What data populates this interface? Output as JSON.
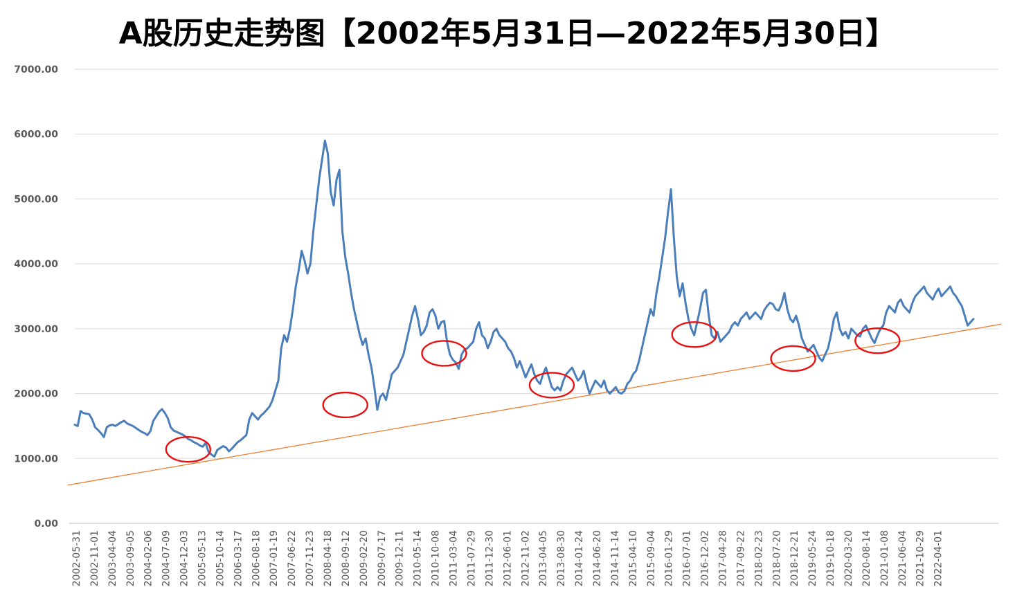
{
  "chart_data": {
    "type": "line",
    "title": "A股历史走势图【2002年5月31日—2022年5月30日】",
    "xlabel": "",
    "ylabel": "",
    "ylim": [
      0,
      7000
    ],
    "yticks": [
      "0.00",
      "1000.00",
      "2000.00",
      "3000.00",
      "4000.00",
      "5000.00",
      "6000.00",
      "7000.00"
    ],
    "ytick_values": [
      0,
      1000,
      2000,
      3000,
      4000,
      5000,
      6000,
      7000
    ],
    "xticks": [
      "2002-05-31",
      "2002-11-01",
      "2003-04-04",
      "2003-09-05",
      "2004-02-06",
      "2004-07-09",
      "2004-12-03",
      "2005-05-13",
      "2005-10-14",
      "2006-03-17",
      "2006-08-18",
      "2007-01-19",
      "2007-06-22",
      "2007-11-23",
      "2008-04-18",
      "2008-09-12",
      "2009-02-20",
      "2009-07-17",
      "2009-12-11",
      "2010-05-14",
      "2010-10-08",
      "2011-03-04",
      "2011-07-29",
      "2011-12-30",
      "2012-06-01",
      "2012-11-02",
      "2013-04-05",
      "2013-08-30",
      "2014-01-24",
      "2014-06-20",
      "2014-11-14",
      "2015-04-10",
      "2015-09-04",
      "2016-01-29",
      "2016-07-01",
      "2016-12-02",
      "2017-04-28",
      "2017-09-22",
      "2018-02-23",
      "2018-07-20",
      "2018-12-21",
      "2019-05-24",
      "2019-10-18",
      "2020-03-20",
      "2020-08-14",
      "2021-01-08",
      "2021-06-04",
      "2021-10-29",
      "2022-04-01"
    ],
    "grid": true,
    "legend": "none",
    "series": [
      {
        "values": [
          1520,
          1500,
          1730,
          1700,
          1690,
          1680,
          1600,
          1480,
          1440,
          1390,
          1330,
          1480,
          1510,
          1520,
          1500,
          1530,
          1560,
          1580,
          1540,
          1520,
          1500,
          1470,
          1440,
          1410,
          1390,
          1360,
          1420,
          1580,
          1650,
          1720,
          1760,
          1700,
          1620,
          1480,
          1430,
          1410,
          1390,
          1370,
          1340,
          1300,
          1280,
          1250,
          1230,
          1200,
          1180,
          1240,
          1100,
          1060,
          1030,
          1130,
          1160,
          1190,
          1170,
          1110,
          1150,
          1200,
          1250,
          1280,
          1320,
          1360,
          1600,
          1700,
          1650,
          1600,
          1660,
          1700,
          1750,
          1800,
          1900,
          2050,
          2200,
          2700,
          2900,
          2800,
          3000,
          3300,
          3650,
          3900,
          4200,
          4050,
          3850,
          4000,
          4500,
          4900,
          5300,
          5600,
          5900,
          5700,
          5100,
          4900,
          5300,
          5450,
          4500,
          4100,
          3850,
          3550,
          3300,
          3100,
          2900,
          2750,
          2850,
          2600,
          2400,
          2100,
          1750,
          1950,
          2000,
          1900,
          2100,
          2300,
          2350,
          2400,
          2500,
          2600,
          2800,
          3000,
          3200,
          3350,
          3150,
          2900,
          2950,
          3050,
          3250,
          3300,
          3200,
          3000,
          3100,
          3120,
          2800,
          2600,
          2520,
          2480,
          2380,
          2600,
          2680,
          2700,
          2750,
          2800,
          3000,
          3100,
          2900,
          2850,
          2700,
          2800,
          2950,
          3000,
          2900,
          2850,
          2800,
          2700,
          2650,
          2550,
          2400,
          2500,
          2380,
          2250,
          2350,
          2450,
          2300,
          2200,
          2150,
          2300,
          2400,
          2250,
          2100,
          2050,
          2100,
          2050,
          2200,
          2300,
          2350,
          2400,
          2300,
          2200,
          2250,
          2350,
          2150,
          2000,
          2100,
          2200,
          2150,
          2100,
          2200,
          2050,
          2000,
          2050,
          2100,
          2020,
          2000,
          2040,
          2150,
          2200,
          2300,
          2350,
          2500,
          2700,
          2900,
          3100,
          3300,
          3200,
          3550,
          3800,
          4100,
          4400,
          4800,
          5150,
          4400,
          3800,
          3500,
          3700,
          3400,
          3150,
          3000,
          2900,
          3100,
          3300,
          3550,
          3600,
          3200,
          2900,
          2850,
          2950,
          2800,
          2850,
          2900,
          2950,
          3050,
          3100,
          3050,
          3150,
          3200,
          3250,
          3150,
          3200,
          3250,
          3200,
          3150,
          3280,
          3350,
          3400,
          3380,
          3300,
          3280,
          3380,
          3550,
          3300,
          3150,
          3100,
          3200,
          3050,
          2850,
          2750,
          2650,
          2700,
          2750,
          2650,
          2550,
          2500,
          2600,
          2700,
          2900,
          3150,
          3250,
          3000,
          2900,
          2950,
          2850,
          3000,
          2950,
          2900,
          2880,
          3000,
          3050,
          2950,
          2850,
          2780,
          2900,
          3000,
          3050,
          3250,
          3350,
          3300,
          3250,
          3400,
          3450,
          3350,
          3300,
          3250,
          3400,
          3500,
          3550,
          3600,
          3650,
          3550,
          3500,
          3450,
          3550,
          3620,
          3500,
          3550,
          3600,
          3650,
          3550,
          3500,
          3420,
          3350,
          3200,
          3050,
          3100,
          3150
        ]
      }
    ],
    "trendline": {
      "start_value": 590,
      "end_value": 3070,
      "color": "#ED7D31"
    },
    "series_color": "#4A7EBB",
    "circle_color": "#E81010",
    "circles": [
      {
        "center_index": 39,
        "center_value": 1140
      },
      {
        "center_index": 93,
        "center_value": 1825
      },
      {
        "center_index": 127,
        "center_value": 2620
      },
      {
        "center_index": 164,
        "center_value": 2130
      },
      {
        "center_index": 213,
        "center_value": 2910
      },
      {
        "center_index": 247,
        "center_value": 2540
      },
      {
        "center_index": 276,
        "center_value": 2815
      }
    ]
  }
}
